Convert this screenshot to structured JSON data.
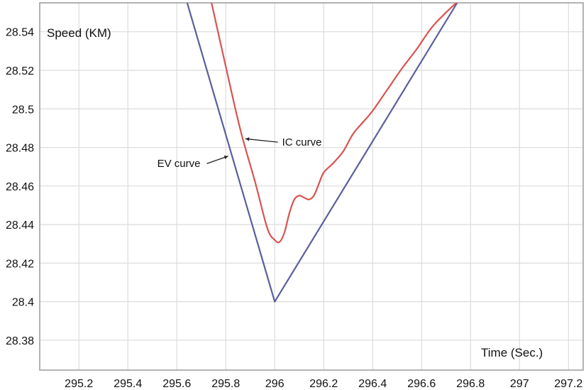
{
  "chart_data": {
    "type": "line",
    "xlabel": "Time (Sec.)",
    "ylabel": "Speed (KM)",
    "xlim": [
      295.04,
      297.26
    ],
    "ylim": [
      28.3645,
      28.555
    ],
    "grid": true,
    "x_ticks": [
      295.2,
      295.4,
      295.6,
      295.8,
      296,
      296.2,
      296.4,
      296.6,
      296.8,
      297,
      297.2
    ],
    "x_tick_labels": [
      "295.2",
      "295.4",
      "295.6",
      "295.8",
      "296",
      "296.2",
      "296.4",
      "296.6",
      "296.8",
      "297",
      "297.2"
    ],
    "y_ticks": [
      28.38,
      28.4,
      28.42,
      28.44,
      28.46,
      28.48,
      28.5,
      28.52,
      28.54
    ],
    "y_tick_labels": [
      "28.38",
      "28.4",
      "28.42",
      "28.44",
      "28.46",
      "28.48",
      "28.5",
      "28.52",
      "28.54"
    ],
    "series": [
      {
        "name": "EV curve",
        "color": "#5a5f9c",
        "x": [
          295.64,
          296.0,
          296.75
        ],
        "y": [
          28.556,
          28.4,
          28.556
        ]
      },
      {
        "name": "IC curve",
        "color": "#d9534f",
        "x": [
          295.74,
          295.8,
          295.86,
          295.92,
          295.97,
          296.0,
          296.02,
          296.04,
          296.06,
          296.08,
          296.1,
          296.12,
          296.14,
          296.16,
          296.18,
          296.2,
          296.24,
          296.28,
          296.32,
          296.36,
          296.4,
          296.46,
          296.52,
          296.58,
          296.64,
          296.7,
          296.75
        ],
        "y": [
          28.556,
          28.522,
          28.489,
          28.462,
          28.438,
          28.432,
          28.431,
          28.436,
          28.446,
          28.453,
          28.455,
          28.454,
          28.453,
          28.455,
          28.461,
          28.467,
          28.472,
          28.478,
          28.487,
          28.493,
          28.499,
          28.51,
          28.521,
          28.531,
          28.542,
          28.55,
          28.556
        ]
      }
    ],
    "annotations": [
      {
        "text": "EV curve",
        "x": 295.52,
        "y": 28.4698,
        "arrow_to": [
          295.81,
          28.4755
        ]
      },
      {
        "text": "IC curve",
        "x": 296.03,
        "y": 28.4809,
        "arrow_to": [
          295.88,
          28.4845
        ]
      }
    ]
  }
}
